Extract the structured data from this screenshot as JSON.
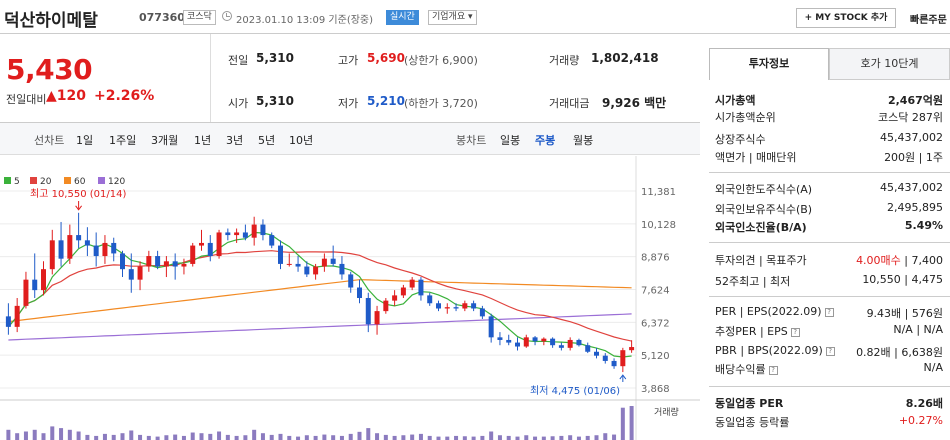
{
  "header": {
    "name": "덕산하이메탈",
    "code": "077360",
    "market_badge": "코스닥",
    "datetime": "2023.01.10 13:09 기준(장중)",
    "live_badge": "실시간",
    "overview_label": "기업개요",
    "mystock_label": "+ MY STOCK 추가",
    "quick_order_label": "빠른주문"
  },
  "summary": {
    "price": "5,430",
    "change_label": "전일대비",
    "change_value": "▲120",
    "change_pct": "+2.26%",
    "prev_close_label": "전일",
    "prev_close": "5,310",
    "open_label": "시가",
    "open": "5,310",
    "high_label": "고가",
    "high": "5,690",
    "upper_limit": "(상한가 6,900)",
    "low_label": "저가",
    "low": "5,210",
    "lower_limit": "(하한가 3,720)",
    "volume_label": "거래량",
    "volume": "1,802,418",
    "value_label": "거래대금",
    "value": "9,926 백만"
  },
  "toolbar": {
    "line_label": "선차트",
    "periods": [
      "1일",
      "1주일",
      "3개월",
      "1년",
      "3년",
      "5년",
      "10년"
    ],
    "candle_label": "봉차트",
    "candles": [
      "일봉",
      "주봉",
      "월봉"
    ],
    "selected_candle": "주봉"
  },
  "colors": {
    "up": "#e01d1d",
    "down": "#1f5bc8",
    "ma5": "#3bb23b",
    "ma20": "#e0433e",
    "ma60": "#f28a23",
    "ma120": "#9b6fd6",
    "volume": "#8b7bbf"
  },
  "chart_data": {
    "type": "candlestick",
    "legend": [
      {
        "name": "5",
        "color": "#3bb23b"
      },
      {
        "name": "20",
        "color": "#e0433e"
      },
      {
        "name": "60",
        "color": "#f28a23"
      },
      {
        "name": "120",
        "color": "#9b6fd6"
      }
    ],
    "y_ticks": [
      "11,381",
      "10,128",
      "8,876",
      "7,624",
      "6,372",
      "5,120",
      "3,868"
    ],
    "ylim": [
      3868,
      11381
    ],
    "high_annotation": "최고 10,550 (01/14)",
    "low_annotation": "최저 4,475 (01/06)",
    "volume_label": "거래량",
    "candles": [
      [
        6600,
        7100,
        5900,
        6200
      ],
      [
        6200,
        7300,
        6000,
        7000
      ],
      [
        7000,
        8300,
        6900,
        8000
      ],
      [
        8000,
        9000,
        7300,
        7600
      ],
      [
        7600,
        8700,
        7400,
        8400
      ],
      [
        8400,
        9900,
        8200,
        9500
      ],
      [
        9500,
        10200,
        8500,
        8800
      ],
      [
        8800,
        10100,
        8600,
        9700
      ],
      [
        9700,
        10550,
        9200,
        9500
      ],
      [
        9500,
        10000,
        8900,
        9300
      ],
      [
        9300,
        9800,
        8500,
        8900
      ],
      [
        8900,
        9700,
        8600,
        9400
      ],
      [
        9400,
        9600,
        8700,
        9000
      ],
      [
        9000,
        9100,
        8100,
        8400
      ],
      [
        8400,
        9000,
        7500,
        8000
      ],
      [
        8000,
        8700,
        7600,
        8500
      ],
      [
        8500,
        9100,
        8300,
        8900
      ],
      [
        8900,
        9100,
        8400,
        8500
      ],
      [
        8500,
        8900,
        8100,
        8700
      ],
      [
        8700,
        9000,
        8000,
        8500
      ],
      [
        8500,
        8800,
        8200,
        8600
      ],
      [
        8600,
        9400,
        8500,
        9300
      ],
      [
        9300,
        9900,
        9100,
        9400
      ],
      [
        9400,
        9700,
        8700,
        8900
      ],
      [
        8900,
        9900,
        8800,
        9800
      ],
      [
        9800,
        9950,
        9500,
        9700
      ],
      [
        9700,
        9950,
        9400,
        9800
      ],
      [
        9800,
        10100,
        9500,
        9600
      ],
      [
        9600,
        10400,
        9300,
        10100
      ],
      [
        10100,
        10300,
        9500,
        9700
      ],
      [
        9700,
        9800,
        9200,
        9300
      ],
      [
        9300,
        9500,
        8400,
        8600
      ],
      [
        8600,
        9000,
        8500,
        8600
      ],
      [
        8600,
        8900,
        8300,
        8500
      ],
      [
        8500,
        8700,
        8100,
        8200
      ],
      [
        8200,
        8600,
        8000,
        8500
      ],
      [
        8500,
        9000,
        8300,
        8800
      ],
      [
        8800,
        9300,
        8500,
        8600
      ],
      [
        8600,
        8900,
        8000,
        8200
      ],
      [
        8200,
        8300,
        7500,
        7700
      ],
      [
        7700,
        8000,
        7100,
        7300
      ],
      [
        7300,
        7500,
        6000,
        6300
      ],
      [
        6300,
        7000,
        5900,
        6800
      ],
      [
        6800,
        7300,
        6700,
        7200
      ],
      [
        7200,
        7600,
        7000,
        7400
      ],
      [
        7400,
        7800,
        7300,
        7700
      ],
      [
        7700,
        8100,
        7600,
        8000
      ],
      [
        8000,
        8100,
        7200,
        7400
      ],
      [
        7400,
        7500,
        7000,
        7100
      ],
      [
        7100,
        7200,
        6800,
        6900
      ],
      [
        6900,
        7100,
        6700,
        6950
      ],
      [
        6950,
        7100,
        6800,
        6900
      ],
      [
        6900,
        7200,
        6800,
        7100
      ],
      [
        7100,
        7200,
        6800,
        6900
      ],
      [
        6900,
        7000,
        6500,
        6600
      ],
      [
        6600,
        6700,
        5600,
        5800
      ],
      [
        5800,
        6000,
        5500,
        5700
      ],
      [
        5700,
        5900,
        5500,
        5600
      ],
      [
        5600,
        5800,
        5300,
        5450
      ],
      [
        5450,
        5900,
        5400,
        5800
      ],
      [
        5800,
        5850,
        5500,
        5650
      ],
      [
        5650,
        5800,
        5500,
        5750
      ],
      [
        5750,
        5800,
        5400,
        5500
      ],
      [
        5500,
        5600,
        5300,
        5400
      ],
      [
        5400,
        5800,
        5300,
        5700
      ],
      [
        5700,
        5750,
        5450,
        5500
      ],
      [
        5500,
        5600,
        5200,
        5250
      ],
      [
        5250,
        5400,
        5000,
        5100
      ],
      [
        5100,
        5200,
        4800,
        4900
      ],
      [
        4900,
        5000,
        4600,
        4700
      ],
      [
        4700,
        5400,
        4475,
        5310
      ],
      [
        5310,
        5690,
        5210,
        5430
      ]
    ],
    "volumes": [
      30,
      20,
      25,
      30,
      20,
      40,
      35,
      30,
      25,
      15,
      12,
      18,
      15,
      20,
      28,
      15,
      12,
      10,
      14,
      16,
      12,
      22,
      20,
      18,
      25,
      15,
      12,
      14,
      30,
      20,
      15,
      18,
      12,
      10,
      14,
      12,
      16,
      14,
      12,
      18,
      24,
      35,
      20,
      15,
      12,
      14,
      16,
      18,
      12,
      10,
      10,
      12,
      11,
      10,
      12,
      25,
      14,
      12,
      10,
      14,
      10,
      10,
      11,
      12,
      14,
      10,
      12,
      14,
      20,
      16,
      95,
      100
    ]
  },
  "right_panel": {
    "tabs": [
      "투자정보",
      "호가 10단계"
    ],
    "rows_a": [
      {
        "label": "시가총액",
        "value": "2,467억원"
      },
      {
        "label": "시가총액순위",
        "value": "코스닥 287위"
      },
      {
        "label": "상장주식수",
        "value": "45,437,002"
      },
      {
        "label": "액면가 | 매매단위",
        "value": "200원 | 1주"
      }
    ],
    "rows_b": [
      {
        "label": "외국인한도주식수(A)",
        "value": "45,437,002"
      },
      {
        "label": "외국인보유주식수(B)",
        "value": "2,495,895"
      },
      {
        "label": "외국인소진율(B/A)",
        "value": "5.49%"
      }
    ],
    "rows_c": [
      {
        "label": "투자의견 | 목표주가",
        "value_up": "4.00매수",
        "value": " | 7,400"
      },
      {
        "label": "52주최고 | 최저",
        "value": "10,550 | 4,475"
      }
    ],
    "rows_d": [
      {
        "label": "PER | EPS(2022.09)",
        "value": "9.43배 | 576원"
      },
      {
        "label": "추정PER | EPS",
        "value": "N/A | N/A"
      },
      {
        "label": "PBR | BPS(2022.09)",
        "value": "0.82배 | 6,638원"
      },
      {
        "label": "배당수익률",
        "value": "N/A"
      }
    ],
    "rows_e": [
      {
        "label": "동일업종 PER",
        "value": "8.26배"
      },
      {
        "label": "동일업종 등락률",
        "value": "+0.27%"
      }
    ]
  }
}
